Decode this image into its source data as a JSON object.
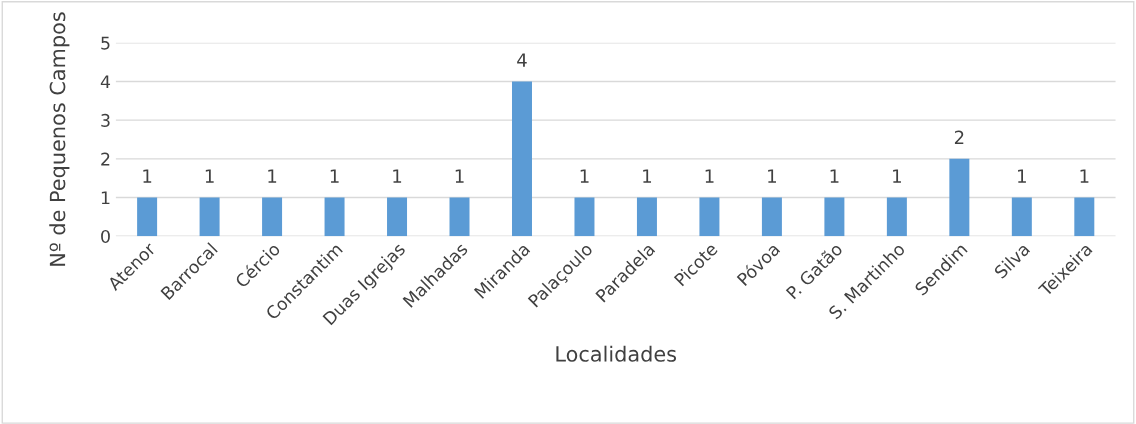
{
  "chart_data": {
    "type": "bar",
    "xlabel": "Localidades",
    "ylabel": "Nº de Pequenos Campos",
    "categories": [
      "Atenor",
      "Barrocal",
      "Cércio",
      "Constantim",
      "Duas Igrejas",
      "Malhadas",
      "Miranda",
      "Palaçoulo",
      "Paradela",
      "Picote",
      "Póvoa",
      "P. Gatão",
      "S. Martinho",
      "Sendim",
      "Silva",
      "Teixeira"
    ],
    "values": [
      1,
      1,
      1,
      1,
      1,
      1,
      4,
      1,
      1,
      1,
      1,
      1,
      1,
      2,
      1,
      1
    ],
    "color": "#5b9bd5",
    "ylim": [
      0,
      5
    ],
    "yticks": [
      0,
      1,
      2,
      3,
      4,
      5
    ],
    "grid": "y",
    "data_labels": true,
    "legend": false
  }
}
